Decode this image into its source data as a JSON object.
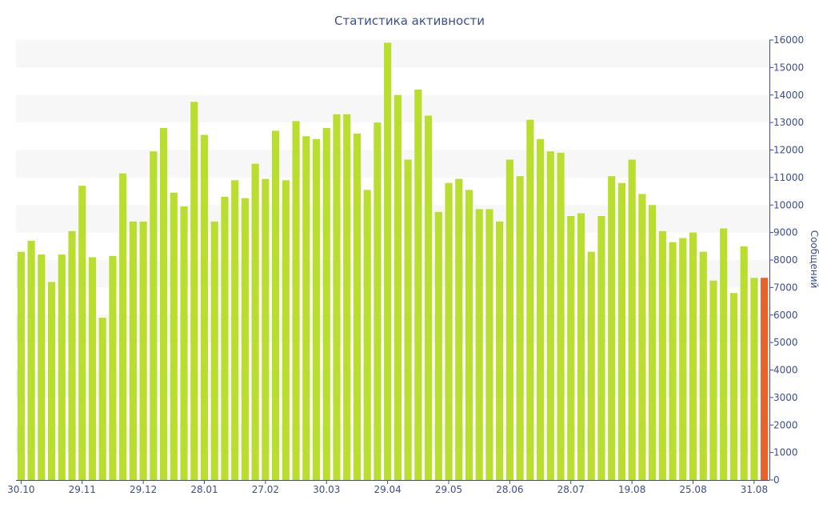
{
  "chart_data": {
    "type": "bar",
    "title": "Статистика активности",
    "xlabel": "",
    "ylabel": "Сообщений",
    "ylim": [
      0,
      16000
    ],
    "yticks": [
      0,
      1000,
      2000,
      3000,
      4000,
      5000,
      6000,
      7000,
      8000,
      9000,
      10000,
      11000,
      12000,
      13000,
      14000,
      15000,
      16000
    ],
    "y_axis_side": "right",
    "grid": "alternating horizontal bands",
    "legend": "none",
    "x_tick_labels": [
      "30.10",
      "29.11",
      "29.12",
      "28.01",
      "27.02",
      "30.03",
      "29.04",
      "29.05",
      "28.06",
      "28.07",
      "19.08",
      "25.08",
      "31.08"
    ],
    "x_tick_indices": [
      0,
      6,
      12,
      18,
      24,
      30,
      36,
      42,
      48,
      54,
      60,
      66,
      72
    ],
    "values": [
      8300,
      8700,
      8200,
      7200,
      8200,
      9050,
      10700,
      8100,
      5900,
      8150,
      11150,
      9400,
      9400,
      11950,
      12800,
      10450,
      9950,
      13750,
      12550,
      9400,
      10300,
      10900,
      10250,
      11500,
      10950,
      12700,
      10900,
      13050,
      12500,
      12400,
      12800,
      13300,
      13300,
      12600,
      10550,
      13000,
      15900,
      14000,
      11650,
      14200,
      13250,
      9750,
      10800,
      10950,
      10550,
      9850,
      9850,
      9400,
      11650,
      11050,
      13100,
      12400,
      11950,
      11900,
      9600,
      9700,
      8300,
      9600,
      11050,
      10800,
      11650,
      10400,
      10000,
      9050,
      8650,
      8800,
      9000,
      8300,
      7250,
      9150,
      6800,
      8500,
      7350,
      7350
    ],
    "highlight_index": 73,
    "colors": {
      "bar": "#bade2f",
      "highlight": "#e8622e",
      "band": "#f7f7f7",
      "axis": "#3c4f8c",
      "text": "#3c4f8c"
    }
  }
}
